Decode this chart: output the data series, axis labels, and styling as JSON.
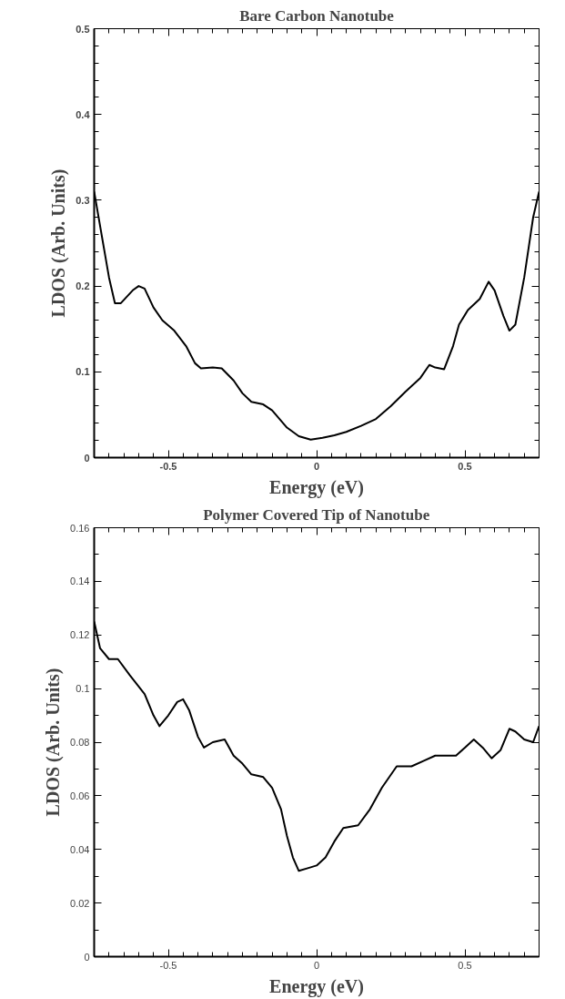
{
  "chart_data": [
    {
      "type": "line",
      "title": "Bare Carbon Nanotube",
      "xlabel": "Energy (eV)",
      "ylabel": "LDOS (Arb. Units)",
      "xlim": [
        -0.75,
        0.75
      ],
      "ylim": [
        0,
        0.5
      ],
      "xticks": [
        -0.5,
        0,
        0.5
      ],
      "yticks": [
        0,
        0.1,
        0.2,
        0.3,
        0.4,
        0.5
      ],
      "line_style": "solid",
      "series": [
        {
          "color": "#000000",
          "x": [
            -0.75,
            -0.72,
            -0.7,
            -0.68,
            -0.66,
            -0.62,
            -0.6,
            -0.58,
            -0.55,
            -0.52,
            -0.48,
            -0.44,
            -0.41,
            -0.39,
            -0.35,
            -0.32,
            -0.28,
            -0.25,
            -0.22,
            -0.18,
            -0.15,
            -0.1,
            -0.06,
            -0.02,
            0.02,
            0.06,
            0.1,
            0.15,
            0.2,
            0.25,
            0.3,
            0.35,
            0.38,
            0.4,
            0.43,
            0.46,
            0.48,
            0.51,
            0.55,
            0.58,
            0.6,
            0.63,
            0.65,
            0.67,
            0.7,
            0.73,
            0.75
          ],
          "values": [
            0.31,
            0.25,
            0.21,
            0.18,
            0.18,
            0.195,
            0.2,
            0.197,
            0.175,
            0.16,
            0.148,
            0.13,
            0.11,
            0.104,
            0.105,
            0.104,
            0.09,
            0.075,
            0.065,
            0.062,
            0.055,
            0.035,
            0.025,
            0.021,
            0.023,
            0.026,
            0.03,
            0.037,
            0.045,
            0.06,
            0.077,
            0.093,
            0.108,
            0.105,
            0.103,
            0.13,
            0.155,
            0.172,
            0.185,
            0.205,
            0.195,
            0.165,
            0.148,
            0.155,
            0.21,
            0.28,
            0.31
          ]
        }
      ]
    },
    {
      "type": "line",
      "title": "Polymer Covered Tip of Nanotube",
      "xlabel": "Energy (eV)",
      "ylabel": "LDOS (Arb. Units)",
      "xlim": [
        -0.75,
        0.75
      ],
      "ylim": [
        0,
        0.16
      ],
      "xticks": [
        -0.5,
        0,
        0.5
      ],
      "yticks": [
        0,
        0.02,
        0.04,
        0.06,
        0.08,
        0.1,
        0.12,
        0.14,
        0.16
      ],
      "line_style": "solid",
      "series": [
        {
          "color": "#000000",
          "x": [
            -0.75,
            -0.73,
            -0.7,
            -0.67,
            -0.63,
            -0.58,
            -0.55,
            -0.53,
            -0.5,
            -0.47,
            -0.45,
            -0.43,
            -0.4,
            -0.38,
            -0.35,
            -0.31,
            -0.28,
            -0.25,
            -0.22,
            -0.18,
            -0.15,
            -0.12,
            -0.1,
            -0.08,
            -0.06,
            -0.03,
            0.0,
            0.03,
            0.06,
            0.09,
            0.14,
            0.18,
            0.22,
            0.27,
            0.32,
            0.36,
            0.4,
            0.43,
            0.47,
            0.5,
            0.53,
            0.56,
            0.59,
            0.62,
            0.65,
            0.67,
            0.7,
            0.73,
            0.75
          ],
          "values": [
            0.125,
            0.115,
            0.111,
            0.111,
            0.105,
            0.098,
            0.09,
            0.086,
            0.09,
            0.095,
            0.096,
            0.092,
            0.082,
            0.078,
            0.08,
            0.081,
            0.075,
            0.072,
            0.068,
            0.067,
            0.063,
            0.055,
            0.045,
            0.037,
            0.032,
            0.033,
            0.034,
            0.037,
            0.043,
            0.048,
            0.049,
            0.055,
            0.063,
            0.071,
            0.071,
            0.073,
            0.075,
            0.075,
            0.075,
            0.078,
            0.081,
            0.078,
            0.074,
            0.077,
            0.085,
            0.084,
            0.081,
            0.08,
            0.086
          ]
        }
      ]
    }
  ]
}
